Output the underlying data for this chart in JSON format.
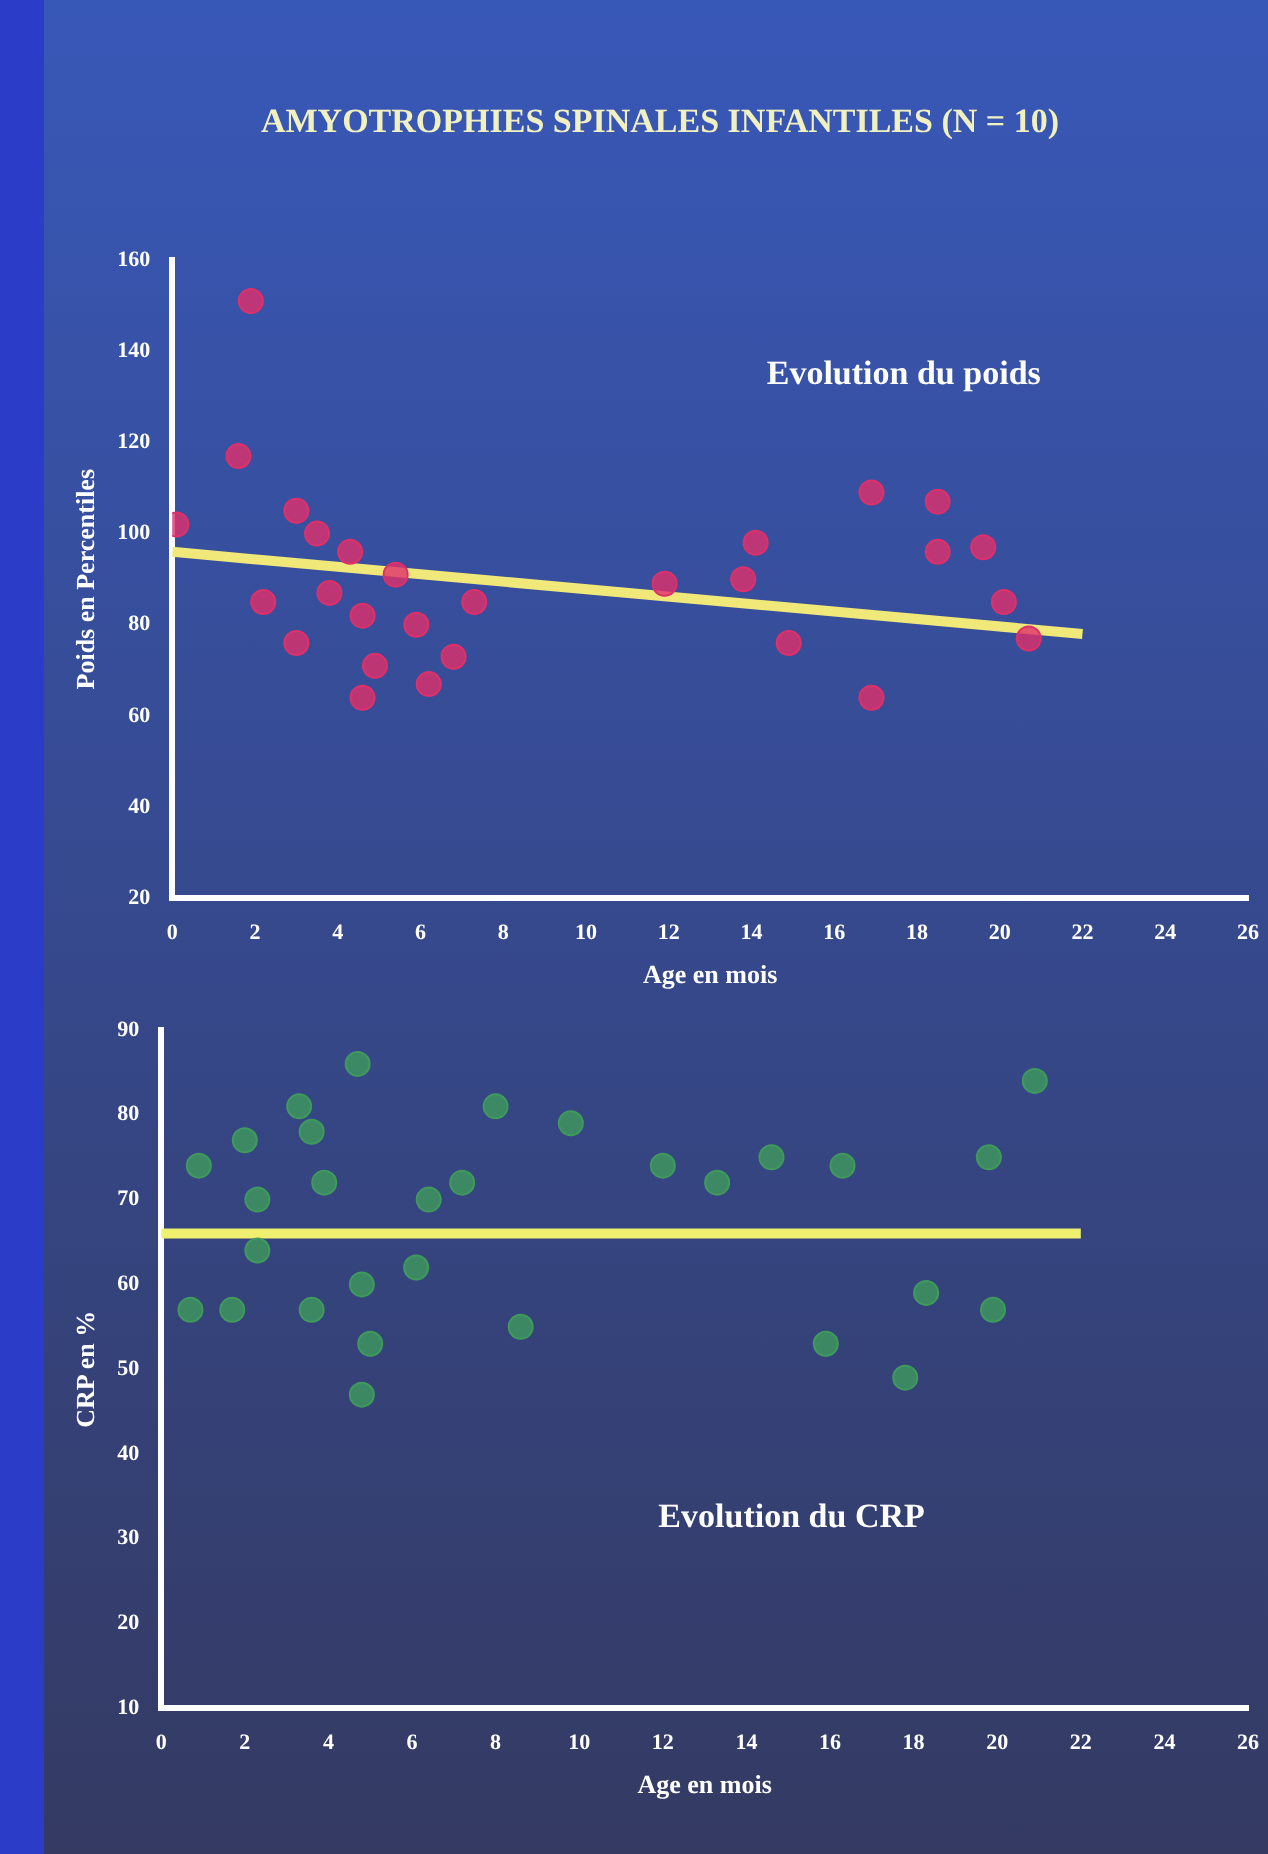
{
  "chart_data": [
    {
      "type": "scatter",
      "title": "AMYOTROPHIES SPINALES INFANTILES (N = 10)",
      "xlabel": "Age en mois",
      "ylabel": "Poids en Percentiles",
      "annotations": [
        "Evolution du poids"
      ],
      "xlim": [
        0,
        26
      ],
      "xticks": [
        0,
        2,
        4,
        6,
        8,
        10,
        12,
        14,
        16,
        18,
        20,
        22,
        24,
        26
      ],
      "ylim": [
        20,
        160
      ],
      "yticks": [
        20,
        40,
        60,
        80,
        100,
        120,
        140,
        160
      ],
      "series": [
        {
          "marker": "circle",
          "color": "#e0306a",
          "x": [
            1.9,
            0.1,
            1.6,
            3,
            3.5,
            2.2,
            3.8,
            4.6,
            3,
            4.9,
            6.2,
            4.6,
            5.9,
            6.8,
            7.3,
            5.4,
            4.3,
            14.1,
            13.8,
            11.9,
            16.9,
            18.5,
            19.6,
            14.9,
            16.9,
            20.1,
            20.7,
            18.5
          ],
          "values": [
            151,
            102,
            117,
            105,
            100,
            85,
            87,
            82,
            76,
            71,
            67,
            64,
            80,
            73,
            85,
            91,
            96,
            98,
            90,
            89,
            109,
            96,
            97,
            76,
            64,
            85,
            77,
            107
          ]
        },
        {
          "type": "line",
          "color": "#f0e878",
          "x": [
            0,
            22
          ],
          "values": [
            96,
            78
          ]
        }
      ]
    },
    {
      "type": "scatter",
      "xlabel": "Age en mois",
      "ylabel": "CRP en %",
      "annotations": [
        "Evolution du CRP"
      ],
      "xlim": [
        0,
        26
      ],
      "xticks": [
        0,
        2,
        4,
        6,
        8,
        10,
        12,
        14,
        16,
        18,
        20,
        22,
        24,
        26
      ],
      "ylim": [
        10,
        90
      ],
      "yticks": [
        10,
        20,
        30,
        40,
        50,
        60,
        70,
        80,
        90
      ],
      "series": [
        {
          "marker": "circle",
          "color": "#3f9a5c",
          "x": [
            0.9,
            2,
            3.3,
            3.6,
            4.7,
            3.9,
            2.3,
            1.7,
            0.7,
            3.6,
            4.8,
            5,
            4.8,
            6.1,
            6.4,
            7.2,
            8,
            8.6,
            9.8,
            12,
            13.3,
            14.6,
            16.3,
            15.9,
            17.8,
            18.3,
            19.9,
            19.8,
            20.9,
            2.3
          ],
          "values": [
            74,
            77,
            81,
            78,
            86,
            72,
            70,
            57,
            57,
            57,
            60,
            53,
            47,
            62,
            70,
            72,
            81,
            55,
            79,
            74,
            72,
            75,
            74,
            53,
            49,
            59,
            57,
            75,
            84,
            64
          ]
        },
        {
          "type": "line",
          "color": "#f0f070",
          "x": [
            0,
            22
          ],
          "values": [
            66,
            66
          ]
        }
      ]
    }
  ]
}
